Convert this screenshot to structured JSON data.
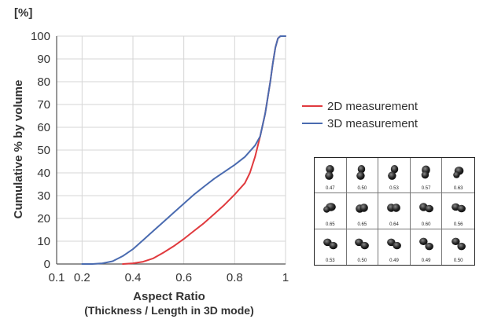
{
  "chart_data": {
    "type": "line",
    "unit_label": "[%]",
    "ylabel": "Cumulative  % by volume",
    "xlabel": "Aspect Ratio",
    "xlabel_sub": "(Thickness / Length in 3D mode)",
    "xlim": [
      0.1,
      1.0
    ],
    "ylim": [
      0,
      100
    ],
    "x_ticks": [
      0.1,
      0.2,
      0.4,
      0.6,
      0.8,
      1.0
    ],
    "x_tick_labels": [
      "0.1",
      "0.2",
      "0.4",
      "0.6",
      "0.8",
      "1"
    ],
    "y_ticks": [
      0,
      10,
      20,
      30,
      40,
      50,
      60,
      70,
      80,
      90,
      100
    ],
    "grid": true,
    "legend_position": "right",
    "series": [
      {
        "name": "2D measurement",
        "color": "#e03a3e",
        "x": [
          0.36,
          0.4,
          0.44,
          0.48,
          0.52,
          0.56,
          0.6,
          0.64,
          0.68,
          0.72,
          0.76,
          0.8,
          0.84,
          0.86,
          0.88,
          0.9,
          0.92,
          0.94,
          0.95,
          0.96,
          0.97,
          0.98,
          1.0
        ],
        "y": [
          0,
          0.3,
          1,
          2.5,
          5,
          7.8,
          11,
          14.5,
          18,
          22,
          26,
          30.5,
          35.5,
          40,
          47,
          56,
          66,
          80,
          88,
          95,
          99,
          100,
          100
        ]
      },
      {
        "name": "3D measurement",
        "color": "#4a6bb0",
        "x": [
          0.2,
          0.24,
          0.28,
          0.32,
          0.36,
          0.4,
          0.44,
          0.48,
          0.52,
          0.56,
          0.6,
          0.64,
          0.68,
          0.72,
          0.76,
          0.8,
          0.84,
          0.88,
          0.9,
          0.92,
          0.94,
          0.95,
          0.96,
          0.97,
          0.98,
          1.0
        ],
        "y": [
          0,
          0,
          0.3,
          1.2,
          3.5,
          6.5,
          10.5,
          14.5,
          18.5,
          22.5,
          26.5,
          30.5,
          34,
          37.5,
          40.5,
          43.5,
          47,
          52,
          56,
          66,
          80,
          88,
          95,
          99,
          100,
          100
        ]
      }
    ]
  },
  "thumbnails": {
    "rows": [
      [
        "0.47",
        "0.50",
        "0.53",
        "0.57",
        "0.63"
      ],
      [
        "0.65",
        "0.65",
        "0.64",
        "0.60",
        "0.56"
      ],
      [
        "0.53",
        "0.50",
        "0.49",
        "0.49",
        "0.50"
      ]
    ]
  }
}
